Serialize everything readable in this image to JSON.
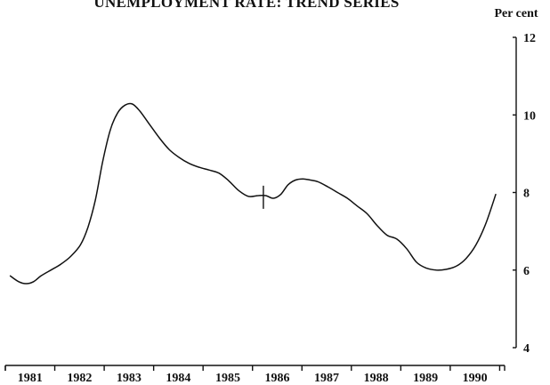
{
  "chart_data": {
    "type": "line",
    "title": "UNEMPLOYMENT RATE: TREND SERIES",
    "ylabel": "Per cent",
    "ylim": [
      4,
      12
    ],
    "yticks": [
      4,
      6,
      8,
      10,
      12
    ],
    "y_tick_labels": [
      "4",
      "6",
      "8",
      "10",
      "12"
    ],
    "y_axis_side": "right",
    "grid": false,
    "categories": [
      "1981",
      "1982",
      "1983",
      "1984",
      "1985",
      "1986",
      "1987",
      "1988",
      "1989",
      "1990"
    ],
    "break_marker_x": 1986.0,
    "series": [
      {
        "x": [
          1980.88,
          1981.05,
          1981.2,
          1981.35,
          1981.5,
          1981.7,
          1981.9,
          1982.1,
          1982.3,
          1982.45,
          1982.6,
          1982.75,
          1982.9,
          1983.05,
          1983.2,
          1983.35,
          1983.5,
          1983.7,
          1983.9,
          1984.1,
          1984.3,
          1984.5,
          1984.7,
          1984.9,
          1985.1,
          1985.3,
          1985.5,
          1985.7,
          1985.9,
          1986.05,
          1986.2,
          1986.35,
          1986.5,
          1986.65,
          1986.8,
          1986.95,
          1987.1,
          1987.3,
          1987.5,
          1987.7,
          1987.9,
          1988.1,
          1988.3,
          1988.5,
          1988.7,
          1988.9,
          1989.1,
          1989.3,
          1989.5,
          1989.7,
          1989.9,
          1990.1,
          1990.3,
          1990.5,
          1990.7
        ],
        "y": [
          5.85,
          5.7,
          5.65,
          5.7,
          5.85,
          6.0,
          6.15,
          6.35,
          6.65,
          7.1,
          7.8,
          8.8,
          9.6,
          10.05,
          10.25,
          10.28,
          10.1,
          9.75,
          9.4,
          9.1,
          8.9,
          8.75,
          8.65,
          8.58,
          8.5,
          8.3,
          8.05,
          7.9,
          7.92,
          7.92,
          7.85,
          7.95,
          8.2,
          8.32,
          8.35,
          8.32,
          8.28,
          8.15,
          8.0,
          7.85,
          7.65,
          7.45,
          7.15,
          6.9,
          6.8,
          6.55,
          6.2,
          6.05,
          6.0,
          6.02,
          6.1,
          6.3,
          6.65,
          7.2,
          7.95
        ]
      }
    ]
  }
}
